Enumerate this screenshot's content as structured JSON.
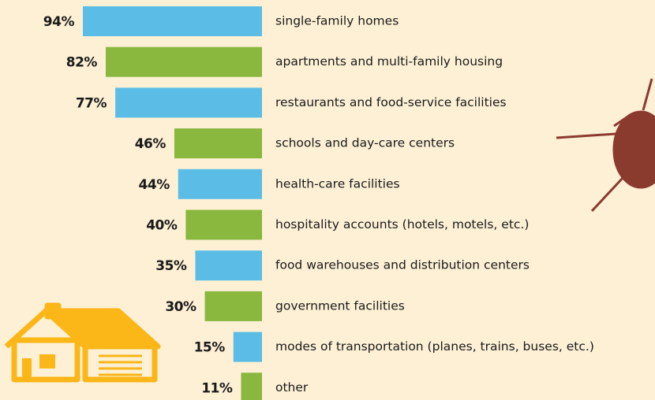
{
  "chart_data": {
    "type": "bar",
    "orientation": "horizontal",
    "categories": [
      "single-family homes",
      "apartments and multi-family housing",
      "restaurants and food-service facilities",
      "schools and day-care centers",
      "health-care facilities",
      "hospitality accounts (hotels, motels, etc.)",
      "food warehouses and distribution centers",
      "government facilities",
      "modes of transportation (planes, trains, buses, etc.)",
      "other"
    ],
    "values": [
      94,
      82,
      77,
      46,
      44,
      40,
      35,
      30,
      15,
      11
    ],
    "value_labels": [
      "94%",
      "82%",
      "77%",
      "46%",
      "44%",
      "40%",
      "35%",
      "30%",
      "15%",
      "11%"
    ],
    "colors": [
      "#5bbde6",
      "#8ab83f",
      "#5bbde6",
      "#8ab83f",
      "#5bbde6",
      "#8ab83f",
      "#5bbde6",
      "#8ab83f",
      "#5bbde6",
      "#8ab83f"
    ]
  }
}
